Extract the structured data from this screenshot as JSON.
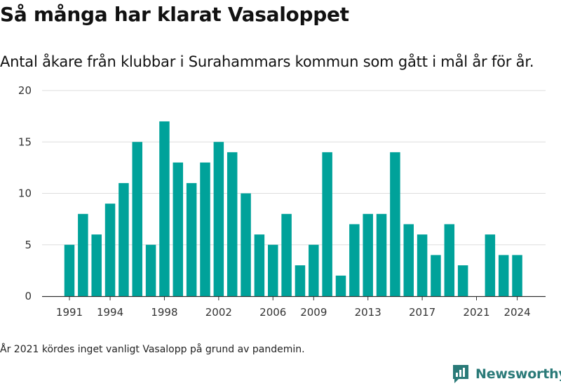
{
  "title": "Så många har klarat Vasaloppet",
  "subtitle": "Antal åkare från klubbar i Surahammars kommun som gått i mål år för år.",
  "note": "År 2021 kördes inget vanligt Vasalopp på grund av pandemin.",
  "brand": {
    "name": "Newsworthy",
    "icon": "newsworthy-logo-icon"
  },
  "colors": {
    "bar": "#00a29a",
    "grid": "#dddddd",
    "axis": "#333333",
    "brand": "#2a7a78"
  },
  "chart_data": {
    "type": "bar",
    "title": "",
    "xlabel": "",
    "ylabel": "",
    "ylim": [
      0,
      20
    ],
    "yticks": [
      0,
      5,
      10,
      15,
      20
    ],
    "xticks": [
      1991,
      1994,
      1998,
      2002,
      2006,
      2009,
      2013,
      2017,
      2021,
      2024
    ],
    "grid": true,
    "x": [
      1991,
      1992,
      1993,
      1994,
      1995,
      1996,
      1997,
      1998,
      1999,
      2000,
      2001,
      2002,
      2003,
      2004,
      2005,
      2006,
      2007,
      2008,
      2009,
      2010,
      2011,
      2012,
      2013,
      2014,
      2015,
      2016,
      2017,
      2018,
      2019,
      2020,
      2021,
      2022,
      2023,
      2024
    ],
    "values": [
      5,
      8,
      6,
      9,
      11,
      15,
      5,
      17,
      13,
      11,
      13,
      15,
      14,
      10,
      6,
      5,
      8,
      3,
      5,
      14,
      2,
      7,
      8,
      8,
      14,
      7,
      6,
      4,
      7,
      3,
      0,
      6,
      4,
      4
    ]
  }
}
